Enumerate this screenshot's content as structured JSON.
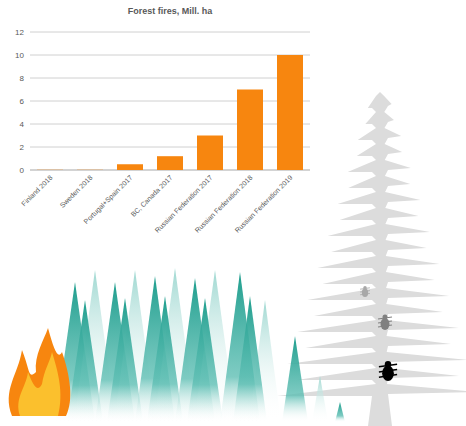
{
  "chart_data": {
    "type": "bar",
    "title": "Forest fires, Mill. ha",
    "categories": [
      "Finland 2018",
      "Sweden 2018",
      "Portugal+Spain 2017",
      "BC, Canada 2017",
      "Russian Federation 2017",
      "Russian Federation 2018",
      "Russian Federation 2019"
    ],
    "values": [
      0.02,
      0.02,
      0.5,
      1.2,
      3,
      7,
      10
    ],
    "color": "#f7860f",
    "ylim": [
      0,
      12
    ],
    "yticks": [
      0,
      2,
      4,
      6,
      8,
      10,
      12
    ],
    "grid": true
  }
}
